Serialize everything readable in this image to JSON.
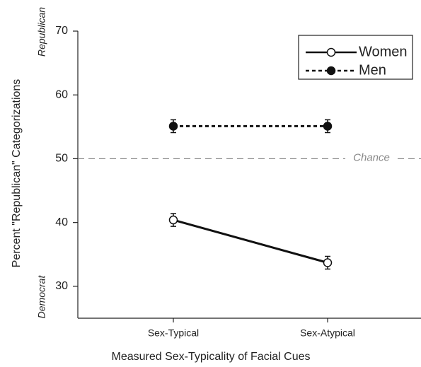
{
  "chart_data": {
    "type": "line",
    "x_label": "Measured Sex-Typicality of Facial Cues",
    "y_label": "Percent \"Republican\" Categorizations",
    "y_top_label": "Republican",
    "y_bottom_label": "Democrat",
    "categories": [
      "Sex-Typical",
      "Sex-Atypical"
    ],
    "series": [
      {
        "name": "Women",
        "color": "#111111",
        "linestyle": "solid",
        "marker": "open",
        "values": [
          40.4,
          33.7
        ],
        "errors": [
          1.0,
          1.0
        ]
      },
      {
        "name": "Men",
        "color": "#111111",
        "linestyle": "dashed",
        "marker": "filled",
        "values": [
          55.1,
          55.1
        ],
        "errors": [
          1.0,
          1.0
        ]
      }
    ],
    "reference_line": {
      "value": 50,
      "label": "Chance",
      "color": "#888888"
    },
    "ylim": [
      25,
      70
    ],
    "yticks": [
      30,
      40,
      50,
      60,
      70
    ],
    "grid": false,
    "legend": "upper right"
  }
}
